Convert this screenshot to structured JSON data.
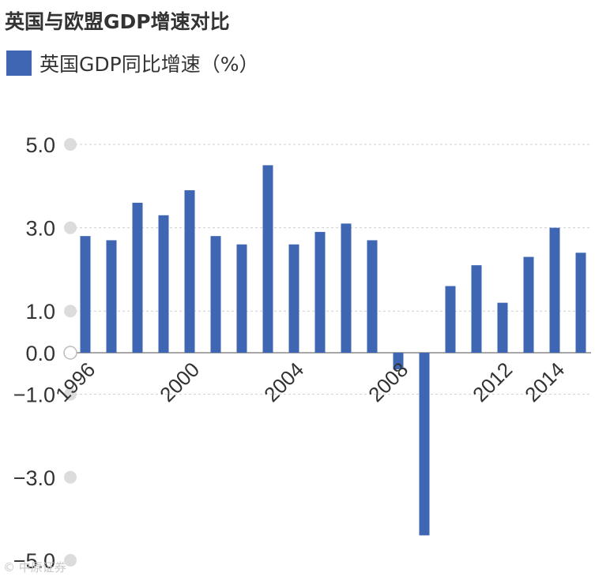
{
  "chart_data": {
    "type": "bar",
    "title": "英国与欧盟GDP增速对比",
    "series": [
      {
        "name": "英国GDP同比增速（%）",
        "color": "#3f66b3",
        "values": [
          2.8,
          2.7,
          3.6,
          3.3,
          3.9,
          2.8,
          2.6,
          4.5,
          2.6,
          2.9,
          3.1,
          2.7,
          -0.4,
          -4.4,
          1.6,
          2.1,
          1.2,
          2.3,
          3.0,
          2.4
        ]
      }
    ],
    "x": [
      1996,
      1997,
      1998,
      1999,
      2000,
      2001,
      2002,
      2003,
      2004,
      2005,
      2006,
      2007,
      2008,
      2009,
      2010,
      2011,
      2012,
      2013,
      2014,
      2015
    ],
    "x_tick_labels": [
      {
        "x": 1996,
        "label": "1996"
      },
      {
        "x": 2000,
        "label": "2000"
      },
      {
        "x": 2004,
        "label": "2004"
      },
      {
        "x": 2008,
        "label": "2008"
      },
      {
        "x": 2012,
        "label": "2012"
      },
      {
        "x": 2014,
        "label": "2014"
      }
    ],
    "y_ticks": [
      {
        "value": 5,
        "label": "5.0"
      },
      {
        "value": 3,
        "label": "3.0"
      },
      {
        "value": 1,
        "label": "1.0"
      },
      {
        "value": 0,
        "label": "0.0"
      },
      {
        "value": -1,
        "label": "-1.0"
      },
      {
        "value": -3,
        "label": "-3.0"
      },
      {
        "value": -5,
        "label": "-5.0"
      }
    ],
    "ylim": [
      -5,
      5
    ],
    "grid": true,
    "legend": "top-left"
  },
  "watermark": "© 中原证券"
}
